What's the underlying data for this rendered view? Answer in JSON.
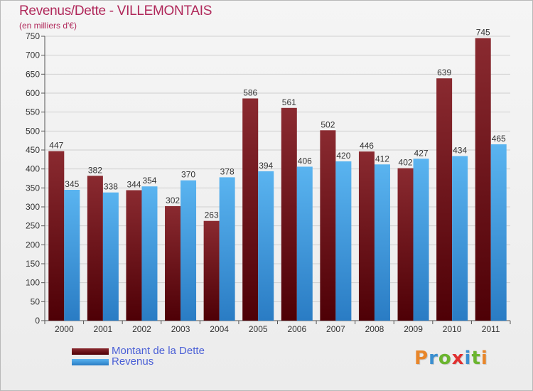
{
  "header": {
    "title": "Revenus/Dette - VILLEMONTAIS",
    "unit": "(en milliers d'€)"
  },
  "colors": {
    "dette": "#7a1a1f",
    "revenus": "#46a3e6",
    "title": "#b0285a",
    "legend_text": "#4a5fd6"
  },
  "legend": {
    "items": [
      {
        "label": "Montant de la Dette",
        "color": "#6b0d12"
      },
      {
        "label": "Revenus",
        "color": "#3f9fe3"
      }
    ]
  },
  "logo": {
    "letters": [
      "P",
      "r",
      "o",
      "x",
      "i",
      "t",
      "i"
    ],
    "colors": [
      "#e8862a",
      "#3a8fd0",
      "#6bb52f",
      "#e03030",
      "#3a8fd0",
      "#6bb52f",
      "#e8862a"
    ]
  },
  "chart_data": {
    "type": "bar",
    "title": "Revenus/Dette - VILLEMONTAIS",
    "ylabel": "(en milliers d'€)",
    "xlabel": "",
    "ylim": [
      0,
      750
    ],
    "yticks": [
      0,
      50,
      100,
      150,
      200,
      250,
      300,
      350,
      400,
      450,
      500,
      550,
      600,
      650,
      700,
      750
    ],
    "grid": true,
    "legend_position": "bottom-left",
    "categories": [
      "2000",
      "2001",
      "2002",
      "2003",
      "2004",
      "2005",
      "2006",
      "2007",
      "2008",
      "2009",
      "2010",
      "2011"
    ],
    "series": [
      {
        "name": "Montant de la Dette",
        "values": [
          447,
          382,
          344,
          302,
          263,
          586,
          561,
          502,
          446,
          402,
          639,
          745
        ]
      },
      {
        "name": "Revenus",
        "values": [
          345,
          338,
          354,
          370,
          378,
          394,
          406,
          420,
          412,
          427,
          434,
          465
        ]
      }
    ]
  }
}
